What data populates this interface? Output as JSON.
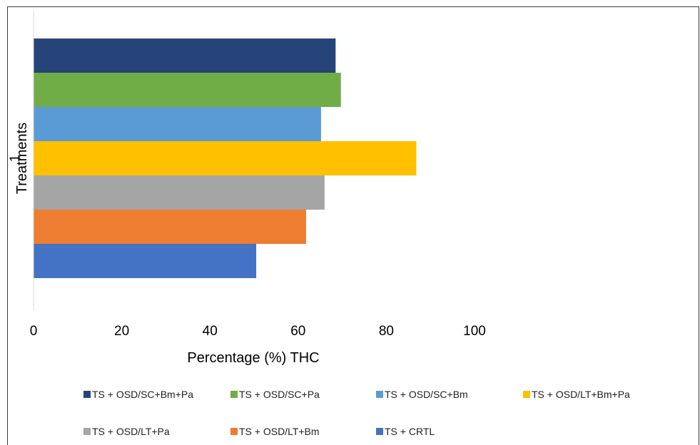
{
  "chart_data": {
    "type": "bar",
    "orientation": "horizontal",
    "xlabel": "Percentage (%) THC",
    "ylabel": "Treatments",
    "y_category_tick": "1",
    "xlim": [
      0,
      100
    ],
    "x_ticks": [
      "0",
      "20",
      "40",
      "60",
      "80",
      "100"
    ],
    "grid": false,
    "legend_position": "bottom",
    "series": [
      {
        "name": "TS + OSD/SC+Bm+Pa",
        "value": 68.5,
        "color": "#264478"
      },
      {
        "name": "TS + OSD/SC+Pa",
        "value": 69.7,
        "color": "#70ad47"
      },
      {
        "name": "TS + OSD/SC+Bm",
        "value": 65.2,
        "color": "#5b9bd5"
      },
      {
        "name": "TS + OSD/LT+Bm+Pa",
        "value": 86.8,
        "color": "#ffc000"
      },
      {
        "name": "TS + OSD/LT+Pa",
        "value": 66.0,
        "color": "#a5a5a5"
      },
      {
        "name": "TS + OSD/LT+Bm",
        "value": 61.8,
        "color": "#ed7d31"
      },
      {
        "name": "TS + CRTL",
        "value": 50.5,
        "color": "#4472c4"
      }
    ]
  }
}
